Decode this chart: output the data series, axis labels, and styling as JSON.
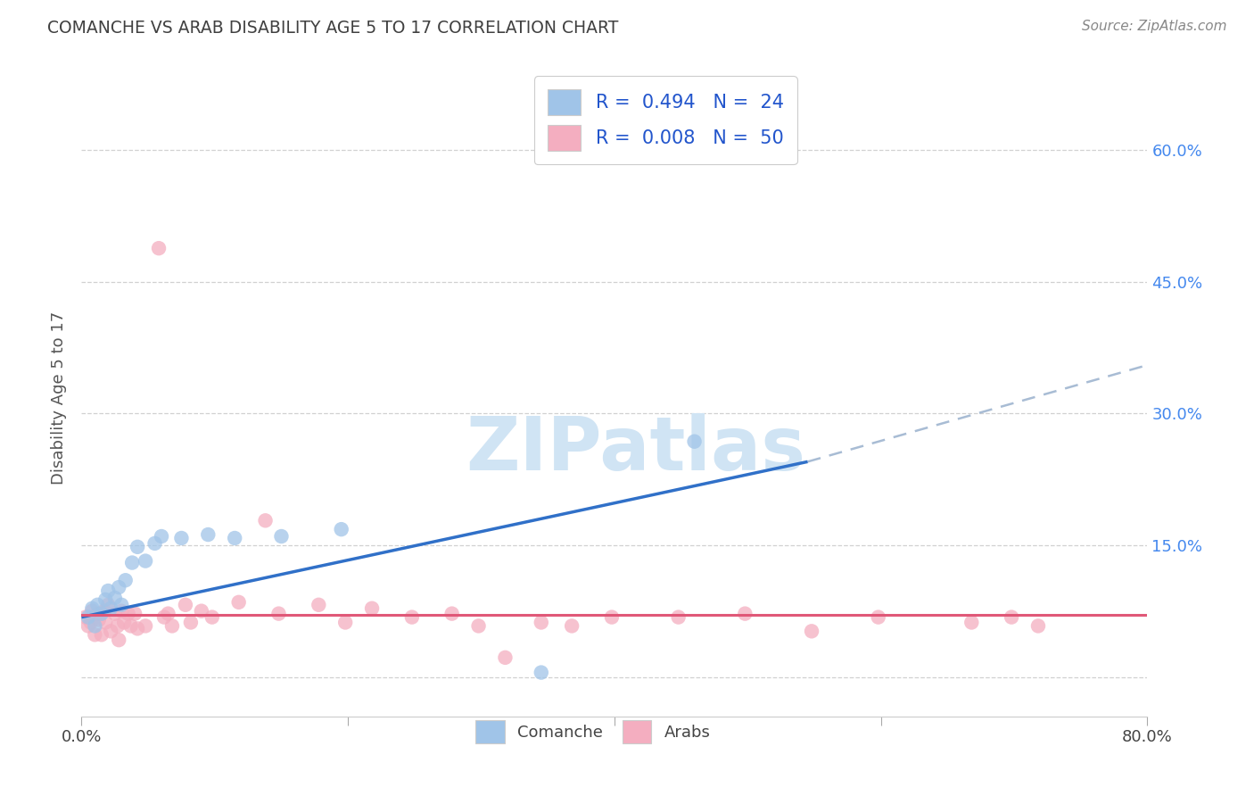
{
  "title": "COMANCHE VS ARAB DISABILITY AGE 5 TO 17 CORRELATION CHART",
  "source": "Source: ZipAtlas.com",
  "ylabel": "Disability Age 5 to 17",
  "xlim": [
    0.0,
    0.8
  ],
  "ylim": [
    -0.045,
    0.68
  ],
  "R_comanche": 0.494,
  "N_comanche": 24,
  "R_arab": 0.008,
  "N_arab": 50,
  "comanche_color": "#a0c4e8",
  "arab_color": "#f4aec0",
  "comanche_line_color": "#3070c8",
  "arab_line_color": "#e05878",
  "dashed_line_color": "#a8bcd4",
  "grid_color": "#cccccc",
  "title_color": "#404040",
  "right_tick_color": "#4488ee",
  "legend_text_color": "#2255cc",
  "source_color": "#888888",
  "background_color": "#ffffff",
  "watermark_color": "#d0e4f4",
  "comanche_x": [
    0.005,
    0.008,
    0.01,
    0.012,
    0.015,
    0.018,
    0.02,
    0.022,
    0.025,
    0.028,
    0.03,
    0.033,
    0.038,
    0.042,
    0.048,
    0.055,
    0.06,
    0.075,
    0.095,
    0.115,
    0.15,
    0.195,
    0.345,
    0.46
  ],
  "comanche_y": [
    0.068,
    0.078,
    0.058,
    0.082,
    0.072,
    0.088,
    0.098,
    0.078,
    0.09,
    0.102,
    0.082,
    0.11,
    0.13,
    0.148,
    0.132,
    0.152,
    0.16,
    0.158,
    0.162,
    0.158,
    0.16,
    0.168,
    0.005,
    0.268
  ],
  "arab_x": [
    0.003,
    0.005,
    0.007,
    0.008,
    0.01,
    0.012,
    0.013,
    0.015,
    0.017,
    0.018,
    0.02,
    0.022,
    0.025,
    0.027,
    0.028,
    0.03,
    0.032,
    0.035,
    0.037,
    0.04,
    0.042,
    0.048,
    0.058,
    0.062,
    0.065,
    0.068,
    0.078,
    0.082,
    0.09,
    0.098,
    0.118,
    0.138,
    0.148,
    0.178,
    0.198,
    0.218,
    0.248,
    0.278,
    0.298,
    0.318,
    0.345,
    0.368,
    0.398,
    0.448,
    0.498,
    0.548,
    0.598,
    0.668,
    0.698,
    0.718
  ],
  "arab_y": [
    0.068,
    0.058,
    0.062,
    0.075,
    0.048,
    0.072,
    0.065,
    0.048,
    0.075,
    0.062,
    0.082,
    0.052,
    0.072,
    0.058,
    0.042,
    0.075,
    0.062,
    0.072,
    0.058,
    0.072,
    0.055,
    0.058,
    0.488,
    0.068,
    0.072,
    0.058,
    0.082,
    0.062,
    0.075,
    0.068,
    0.085,
    0.178,
    0.072,
    0.082,
    0.062,
    0.078,
    0.068,
    0.072,
    0.058,
    0.022,
    0.062,
    0.058,
    0.068,
    0.068,
    0.072,
    0.052,
    0.068,
    0.062,
    0.068,
    0.058
  ],
  "blue_line_x": [
    0.0,
    0.545
  ],
  "blue_line_y": [
    0.068,
    0.245
  ],
  "dashed_line_x": [
    0.545,
    0.8
  ],
  "dashed_line_y": [
    0.245,
    0.355
  ],
  "arab_line_y": 0.071,
  "ytick_positions": [
    0.0,
    0.15,
    0.3,
    0.45,
    0.6
  ],
  "right_ytick_labels": [
    "",
    "15.0%",
    "30.0%",
    "45.0%",
    "60.0%"
  ],
  "xtick_positions": [
    0.0,
    0.2,
    0.4,
    0.6,
    0.8
  ],
  "xtick_labels_show": [
    "0.0%",
    "",
    "",
    "",
    "80.0%"
  ]
}
